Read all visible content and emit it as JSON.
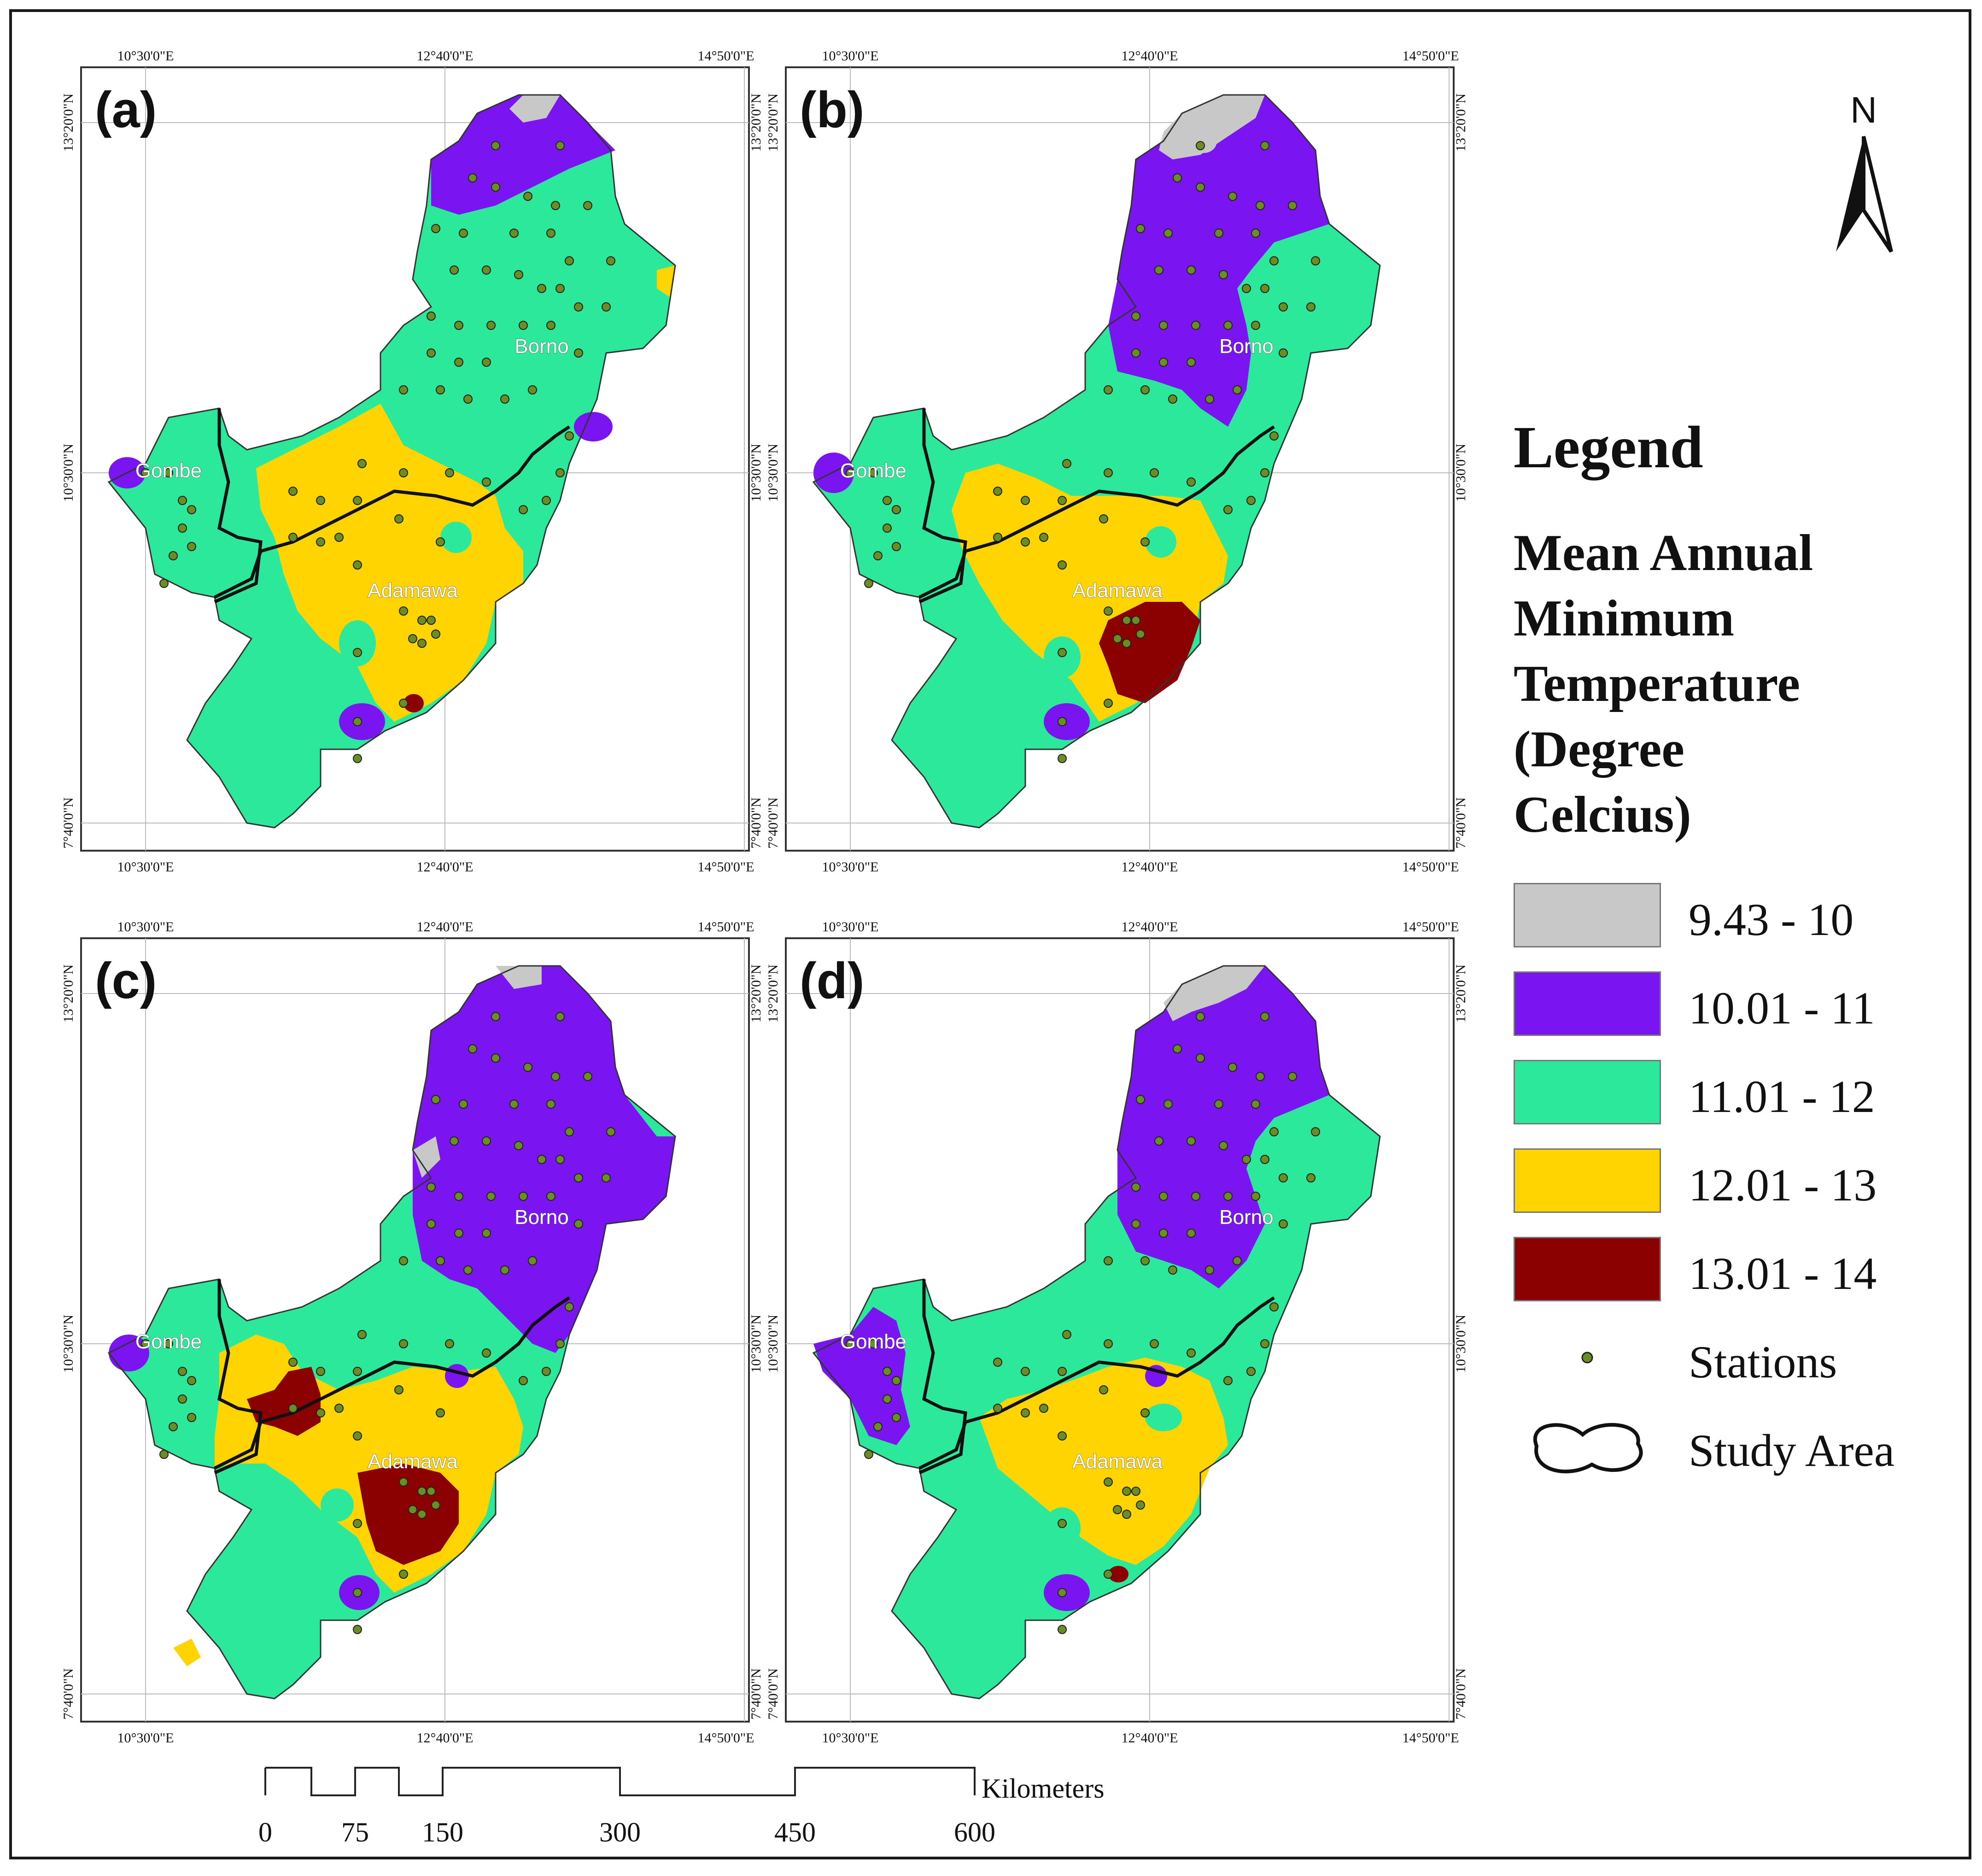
{
  "figure": {
    "colors": {
      "c1": "#C8C8C8",
      "c2": "#7A14F0",
      "c3": "#2CE89A",
      "c4": "#FFD400",
      "c5": "#8B0000",
      "border": "#111111",
      "station": "#6B8E23"
    }
  },
  "axes": {
    "top_lon": [
      "10°30'0\"E",
      "12°40'0\"E",
      "14°50'0\"E"
    ],
    "bottom_lon": [
      "10°30'0\"E",
      "12°40'0\"E",
      "14°50'0\"E"
    ],
    "lat": [
      "13°20'0\"N",
      "10°30'0\"N",
      "7°40'0\"N"
    ]
  },
  "panels": [
    {
      "label": "(a)",
      "places": {
        "borno": "Borno",
        "gombe": "Gombe",
        "adamawa": "Adamawa"
      }
    },
    {
      "label": "(b)",
      "places": {
        "borno": "Borno",
        "gombe": "Gombe",
        "adamawa": "Adamawa"
      }
    },
    {
      "label": "(c)",
      "places": {
        "borno": "Borno",
        "gombe": "Gombe",
        "adamawa": "Adamawa"
      }
    },
    {
      "label": "(d)",
      "places": {
        "borno": "Borno",
        "gombe": "Gombe",
        "adamawa": "Adamawa"
      }
    }
  ],
  "legend": {
    "heading": "Legend",
    "title_lines": [
      "Mean Annual",
      "Minimum",
      "Temperature",
      "(Degree",
      "Celcius)"
    ],
    "classes": [
      {
        "label": "9.43 - 10",
        "color": "#C8C8C8"
      },
      {
        "label": "10.01 - 11",
        "color": "#7A14F0"
      },
      {
        "label": "11.01 - 12",
        "color": "#2CE89A"
      },
      {
        "label": "12.01 - 13",
        "color": "#FFD400"
      },
      {
        "label": "13.01 - 14",
        "color": "#8B0000"
      }
    ],
    "stations_label": "Stations",
    "study_area_label": "Study Area"
  },
  "north_label": "N",
  "scalebar": {
    "unit": "Kilometers",
    "ticks": [
      "0",
      "75",
      "150",
      "300",
      "450",
      "600"
    ]
  }
}
